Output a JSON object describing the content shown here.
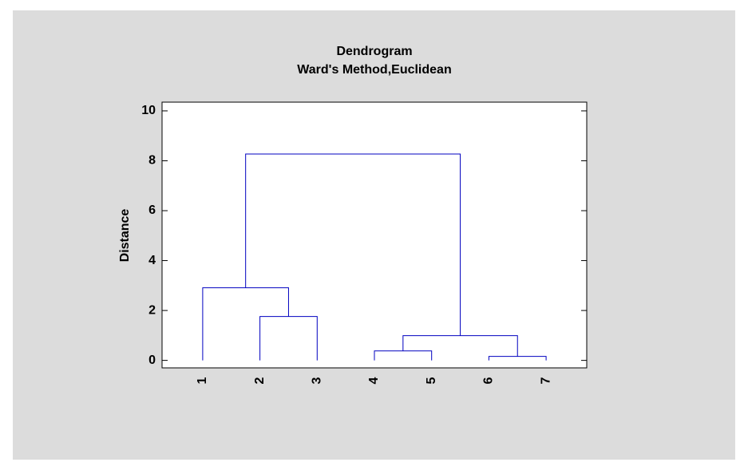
{
  "chart_data": {
    "type": "dendrogram",
    "title": "Dendrogram",
    "subtitle": "Ward's Method,Euclidean",
    "y_label": "Distance",
    "categories": [
      "1",
      "2",
      "3",
      "4",
      "5",
      "6",
      "7"
    ],
    "merges": [
      {
        "children": [
          5,
          6
        ],
        "height": 0.16
      },
      {
        "children": [
          3,
          4
        ],
        "height": 0.38
      },
      {
        "children": [
          8,
          7
        ],
        "height": 0.99
      },
      {
        "children": [
          1,
          2
        ],
        "height": 1.76
      },
      {
        "children": [
          0,
          10
        ],
        "height": 2.91
      },
      {
        "children": [
          11,
          9
        ],
        "height": 8.27
      }
    ],
    "color": "#0000c0",
    "ylim": [
      -0.3,
      10.35
    ],
    "yticks": [
      0,
      2,
      4,
      6,
      8,
      10
    ]
  }
}
